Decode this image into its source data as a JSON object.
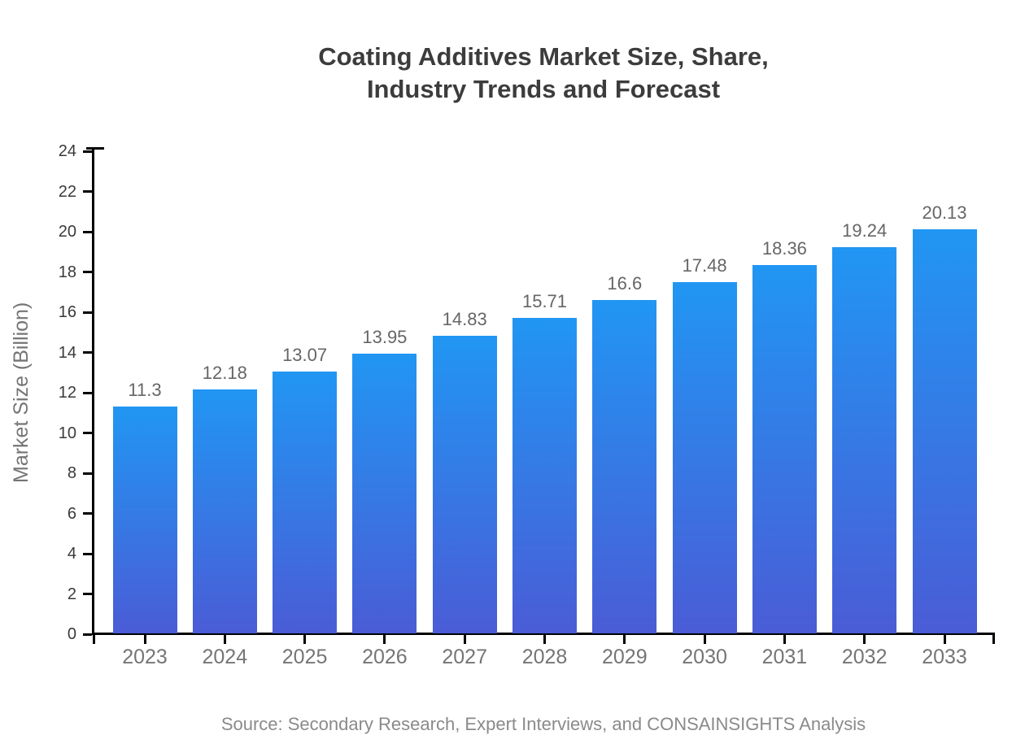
{
  "chart_data": {
    "type": "bar",
    "title": "Coating Additives Market Size, Share, Industry Trends and Forecast",
    "title_lines": [
      "Coating Additives Market Size, Share,",
      "Industry Trends and Forecast"
    ],
    "categories": [
      "2023",
      "2024",
      "2025",
      "2026",
      "2027",
      "2028",
      "2029",
      "2030",
      "2031",
      "2032",
      "2033"
    ],
    "values": [
      11.3,
      12.18,
      13.07,
      13.95,
      14.83,
      15.71,
      16.6,
      17.48,
      18.36,
      19.24,
      20.13
    ],
    "value_labels": [
      "11.3",
      "12.18",
      "13.07",
      "13.95",
      "14.83",
      "15.71",
      "16.6",
      "17.48",
      "18.36",
      "19.24",
      "20.13"
    ],
    "xlabel": "",
    "ylabel": "Market Size (Billion)",
    "ylim": [
      0,
      24
    ],
    "ytick_step": 2,
    "ytick_labels": [
      "0",
      "2",
      "4",
      "6",
      "8",
      "10",
      "12",
      "14",
      "16",
      "18",
      "20",
      "22",
      "24"
    ],
    "grid": false,
    "legend": null,
    "style": {
      "bar_gradient_top": "#2196f3",
      "bar_gradient_bottom": "#4a5cd6",
      "axis_color": "#000000",
      "title_color": "#3c3c3c",
      "value_label_color": "#666666",
      "tick_label_color": "#3a3a3a",
      "category_label_color": "#757575",
      "background": "#ffffff"
    }
  },
  "footer": {
    "source": "Source: Secondary Research, Expert Interviews, and CONSAINSIGHTS Analysis"
  }
}
